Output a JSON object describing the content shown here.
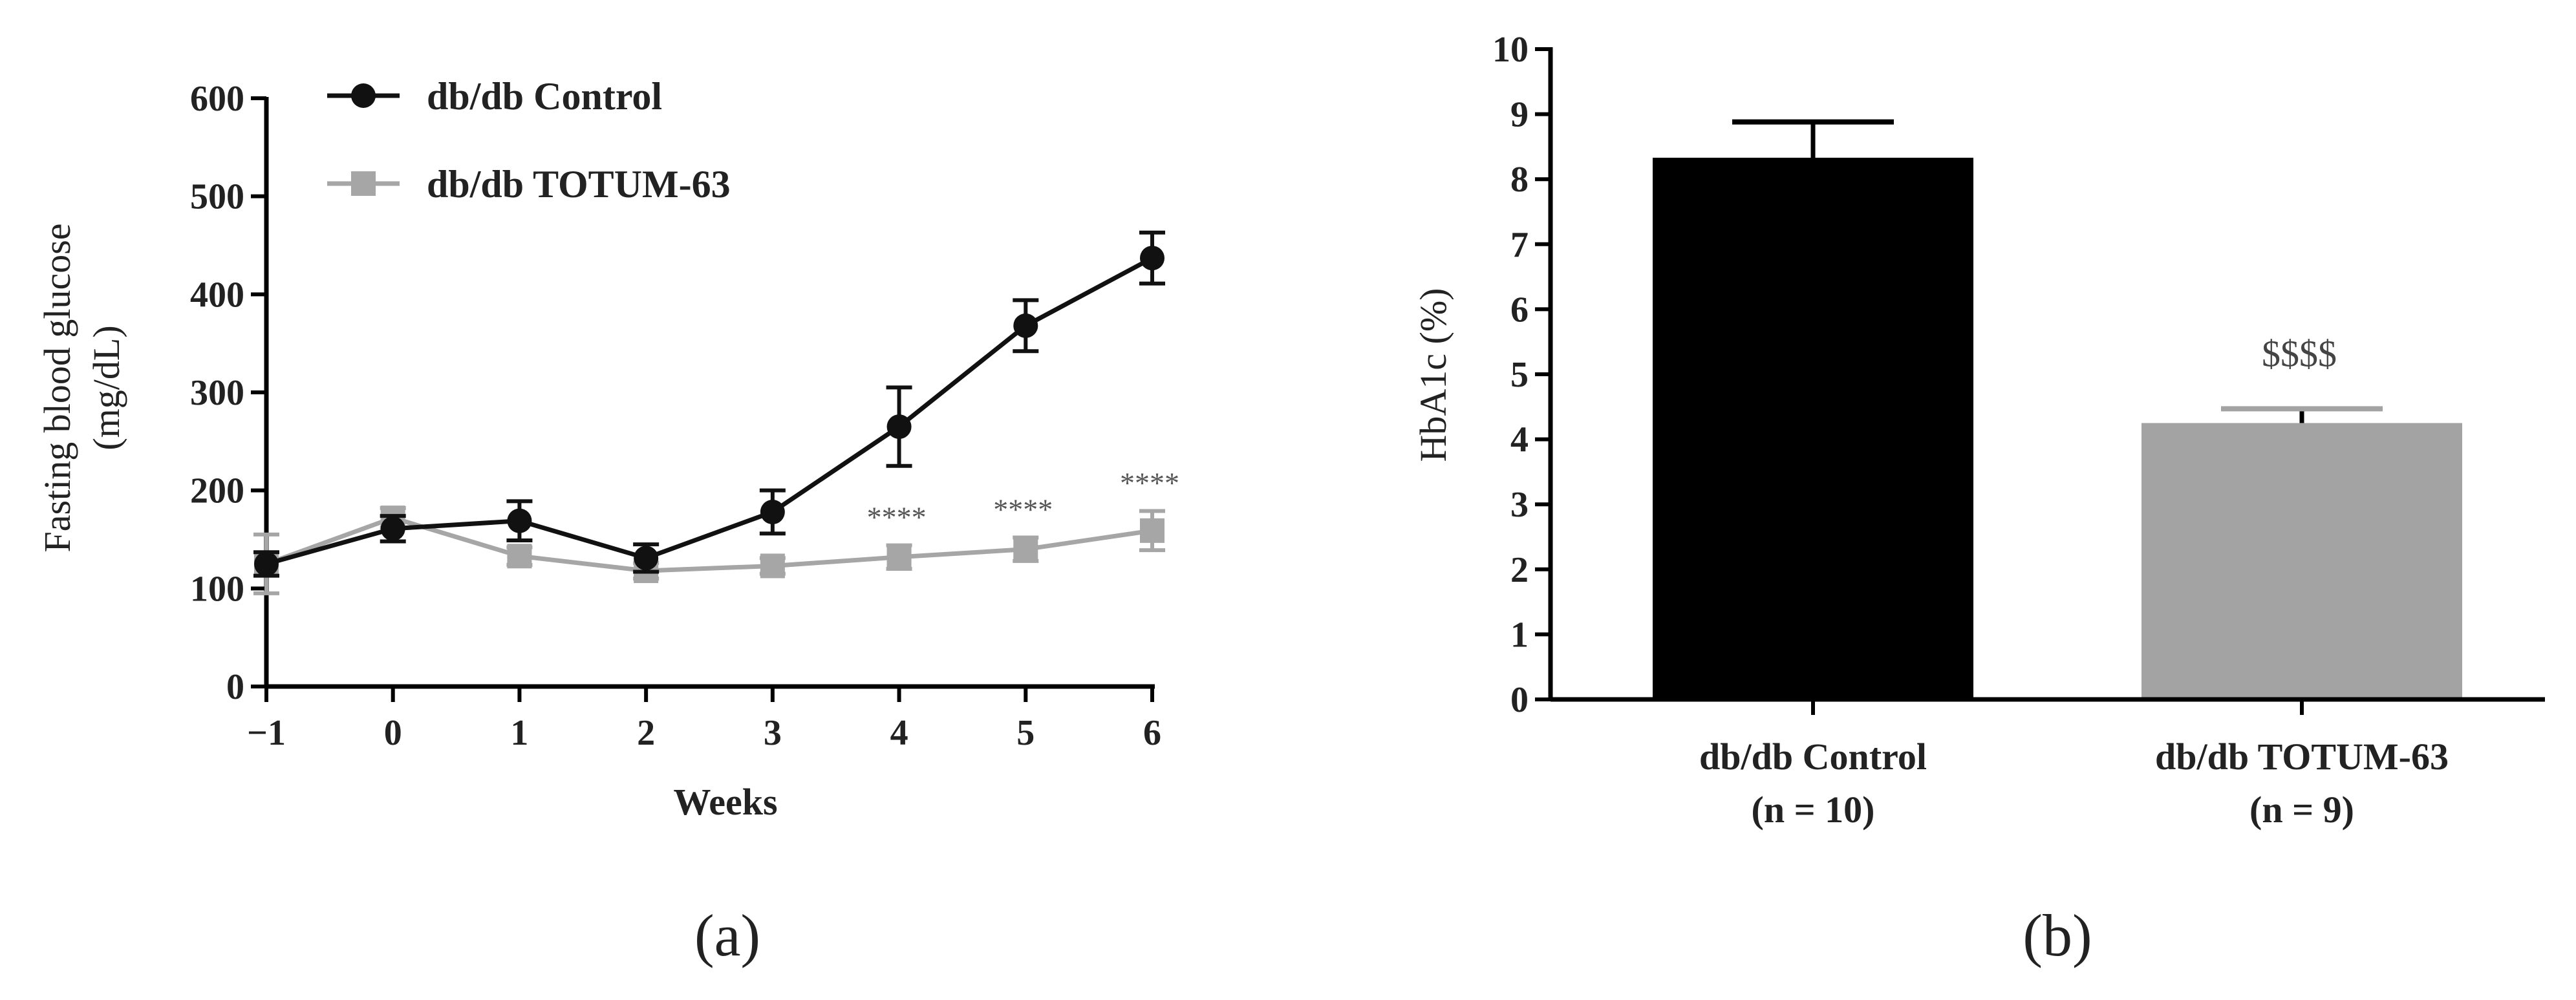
{
  "chart_data": [
    {
      "type": "line",
      "panel_label": "(a)",
      "xlabel": "Weeks",
      "ylabel_line1": "Fasting blood glucose",
      "ylabel_line2": "(mg/dL)",
      "x": [
        -1,
        0,
        1,
        2,
        3,
        4,
        5,
        6
      ],
      "x_tick_labels": [
        "−1",
        "0",
        "1",
        "2",
        "3",
        "4",
        "5",
        "6"
      ],
      "xlim": [
        -1,
        6
      ],
      "ylim": [
        0,
        600
      ],
      "y_ticks": [
        0,
        100,
        200,
        300,
        400,
        500,
        600
      ],
      "grid": false,
      "legend_position": "top-left",
      "series": [
        {
          "name": "db/db Control",
          "color": "#111111",
          "marker": "circle",
          "values": [
            125,
            161,
            169,
            131,
            178,
            265,
            368,
            437
          ],
          "errors": [
            12,
            13,
            20,
            14,
            22,
            40,
            26,
            26
          ]
        },
        {
          "name": "db/db TOTUM-63",
          "color": "#a6a6a6",
          "marker": "square",
          "values": [
            125,
            172,
            133,
            118,
            123,
            132,
            140,
            159
          ],
          "errors": [
            30,
            10,
            9,
            8,
            8,
            12,
            12,
            20
          ]
        }
      ],
      "annotations": [
        {
          "x": 4,
          "text": "****"
        },
        {
          "x": 5,
          "text": "****"
        },
        {
          "x": 6,
          "text": "****"
        }
      ]
    },
    {
      "type": "bar",
      "panel_label": "(b)",
      "ylabel": "HbA1c (%)",
      "ylim": [
        0,
        10
      ],
      "y_ticks": [
        0,
        1,
        2,
        3,
        4,
        5,
        6,
        7,
        8,
        9,
        10
      ],
      "grid": false,
      "categories": [
        {
          "line1": "db/db Control",
          "line2": "(n = 10)"
        },
        {
          "line1": "db/db TOTUM-63",
          "line2": "(n = 9)"
        }
      ],
      "values": [
        8.33,
        4.25
      ],
      "errors": [
        0.55,
        0.22
      ],
      "colors": [
        "#000000",
        "#a3a3a3"
      ],
      "annotations": [
        {
          "category_index": 1,
          "text": "$$$$"
        }
      ]
    }
  ]
}
